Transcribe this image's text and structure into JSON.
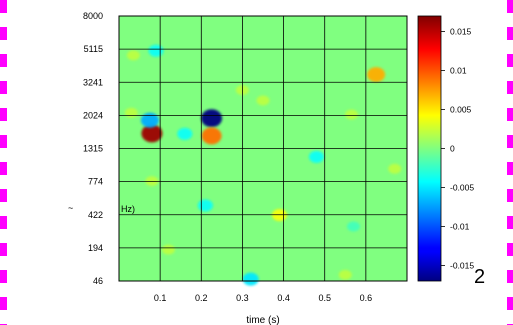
{
  "chart_data": {
    "type": "heatmap",
    "title": "",
    "xlabel": "time (s)",
    "ylabel": "Hz)",
    "xlim": [
      0,
      0.7
    ],
    "x_ticks": [
      "0.1",
      "0.2",
      "0.3",
      "0.4",
      "0.5",
      "0.6"
    ],
    "x_tick_values": [
      0.1,
      0.2,
      0.3,
      0.4,
      0.5,
      0.6
    ],
    "y_scale": "log",
    "y_ticks": [
      "8000",
      "5115",
      "3241",
      "2024",
      "1315",
      "774",
      "422",
      "194",
      "46"
    ],
    "colorbar": {
      "colormap": "jet",
      "range": [
        -0.017,
        0.017
      ],
      "ticks": [
        "0.015",
        "0.01",
        "0.005",
        "0",
        "-0.005",
        "-0.01",
        "-0.015"
      ],
      "tick_values": [
        0.015,
        0.01,
        0.005,
        0,
        -0.005,
        -0.01,
        -0.015
      ]
    },
    "grid": true,
    "blobs": [
      {
        "time": 0.08,
        "freq": 1600,
        "value": 0.016
      },
      {
        "time": 0.075,
        "freq": 1900,
        "value": -0.007
      },
      {
        "time": 0.225,
        "freq": 1950,
        "value": -0.018
      },
      {
        "time": 0.225,
        "freq": 1550,
        "value": 0.009
      },
      {
        "time": 0.16,
        "freq": 1590,
        "value": -0.004
      },
      {
        "time": 0.09,
        "freq": 5000,
        "value": -0.004
      },
      {
        "time": 0.035,
        "freq": 4700,
        "value": 0.002
      },
      {
        "time": 0.625,
        "freq": 3600,
        "value": 0.007
      },
      {
        "time": 0.48,
        "freq": 1150,
        "value": -0.004
      },
      {
        "time": 0.21,
        "freq": 500,
        "value": -0.004
      },
      {
        "time": 0.39,
        "freq": 420,
        "value": 0.004
      },
      {
        "time": 0.32,
        "freq": 50,
        "value": -0.005
      },
      {
        "time": 0.08,
        "freq": 780,
        "value": 0.002
      },
      {
        "time": 0.3,
        "freq": 2900,
        "value": 0.002
      },
      {
        "time": 0.35,
        "freq": 2500,
        "value": 0.002
      },
      {
        "time": 0.67,
        "freq": 950,
        "value": 0.002
      },
      {
        "time": 0.565,
        "freq": 2050,
        "value": 0.002
      },
      {
        "time": 0.57,
        "freq": 320,
        "value": -0.002
      },
      {
        "time": 0.55,
        "freq": 60,
        "value": 0.002
      },
      {
        "time": 0.03,
        "freq": 2100,
        "value": 0.002
      },
      {
        "time": 0.12,
        "freq": 180,
        "value": 0.002
      }
    ]
  },
  "page_number": "2",
  "colors": {
    "background": "#80ff80",
    "grid": "#000000",
    "border": "#ff00ff"
  }
}
